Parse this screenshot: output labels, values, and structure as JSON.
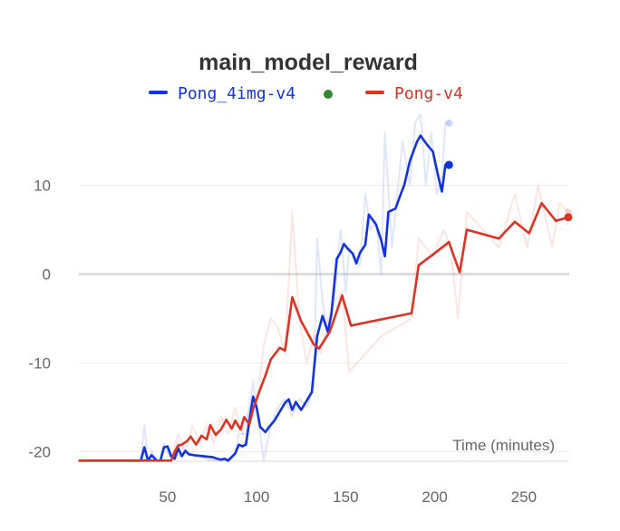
{
  "chart_data": {
    "type": "line",
    "title": "main_model_reward",
    "xlabel": "Time (minutes)",
    "ylabel": "",
    "xlim": [
      0,
      278
    ],
    "ylim": [
      -21,
      20
    ],
    "xticks": [
      50,
      100,
      150,
      200,
      250
    ],
    "yticks": [
      -20,
      -10,
      0,
      10
    ],
    "grid": true,
    "legend_position": "top",
    "series": [
      {
        "name": "Pong_4img-v4",
        "color": "#1133dd",
        "smoothed": [
          [
            0,
            -21
          ],
          [
            35,
            -21
          ],
          [
            37,
            -19.5
          ],
          [
            39,
            -21
          ],
          [
            41,
            -20.4
          ],
          [
            44,
            -21
          ],
          [
            46,
            -21
          ],
          [
            48,
            -19.5
          ],
          [
            50,
            -19.4
          ],
          [
            52,
            -20.5
          ],
          [
            54,
            -20.8
          ],
          [
            56,
            -19.6
          ],
          [
            58,
            -20.5
          ],
          [
            60,
            -19.9
          ],
          [
            62,
            -20.3
          ],
          [
            65,
            -20.4
          ],
          [
            75,
            -20.6
          ],
          [
            78,
            -20.8
          ],
          [
            80,
            -20.9
          ],
          [
            82,
            -20.8
          ],
          [
            84,
            -21
          ],
          [
            86,
            -20.6
          ],
          [
            88,
            -20.2
          ],
          [
            90,
            -19.2
          ],
          [
            92,
            -19.4
          ],
          [
            94,
            -19.2
          ],
          [
            96,
            -16.5
          ],
          [
            98,
            -13.8
          ],
          [
            100,
            -15
          ],
          [
            102,
            -17.2
          ],
          [
            105,
            -17.8
          ],
          [
            107,
            -17.2
          ],
          [
            110,
            -16.5
          ],
          [
            113,
            -15.5
          ],
          [
            116,
            -14.5
          ],
          [
            118,
            -14.1
          ],
          [
            120,
            -15.3
          ],
          [
            122,
            -14.4
          ],
          [
            125,
            -15.3
          ],
          [
            128,
            -14.3
          ],
          [
            131,
            -13.3
          ],
          [
            134,
            -7
          ],
          [
            137,
            -4.7
          ],
          [
            140,
            -6.5
          ],
          [
            142,
            -4.5
          ],
          [
            145,
            1.7
          ],
          [
            147,
            2.4
          ],
          [
            149,
            3.4
          ],
          [
            151,
            2.9
          ],
          [
            154,
            2.3
          ],
          [
            156,
            1.2
          ],
          [
            158,
            2.4
          ],
          [
            161,
            3.3
          ],
          [
            163,
            6.7
          ],
          [
            167,
            5.6
          ],
          [
            170,
            3.8
          ],
          [
            172,
            2
          ],
          [
            174,
            7
          ],
          [
            178,
            7.4
          ],
          [
            180,
            8.5
          ],
          [
            183,
            10.1
          ],
          [
            186,
            12.7
          ],
          [
            190,
            14.9
          ],
          [
            192,
            15.6
          ],
          [
            196,
            14.5
          ],
          [
            199,
            13.8
          ],
          [
            202,
            11
          ],
          [
            204,
            9.3
          ],
          [
            206,
            12.3
          ],
          [
            208,
            12.3
          ]
        ],
        "raw": [
          [
            0,
            -21
          ],
          [
            35,
            -21
          ],
          [
            37,
            -17
          ],
          [
            39,
            -21
          ],
          [
            41,
            -20
          ],
          [
            44,
            -21
          ],
          [
            46,
            -21
          ],
          [
            48,
            -19
          ],
          [
            52,
            -21
          ],
          [
            56,
            -19
          ],
          [
            60,
            -20
          ],
          [
            75,
            -21
          ],
          [
            84,
            -21
          ],
          [
            88,
            -20
          ],
          [
            90,
            -18
          ],
          [
            94,
            -18
          ],
          [
            98,
            -12
          ],
          [
            100,
            -15
          ],
          [
            104,
            -21
          ],
          [
            108,
            -17
          ],
          [
            112,
            -15
          ],
          [
            116,
            -14
          ],
          [
            120,
            -16
          ],
          [
            124,
            -14
          ],
          [
            128,
            -15
          ],
          [
            132,
            -13
          ],
          [
            134,
            4
          ],
          [
            137,
            -3
          ],
          [
            140,
            -7
          ],
          [
            144,
            -2
          ],
          [
            147,
            5
          ],
          [
            150,
            -2
          ],
          [
            152,
            3
          ],
          [
            155,
            2
          ],
          [
            158,
            1
          ],
          [
            161,
            9
          ],
          [
            164,
            5
          ],
          [
            167,
            6
          ],
          [
            170,
            0
          ],
          [
            172,
            16
          ],
          [
            176,
            3
          ],
          [
            179,
            9
          ],
          [
            182,
            15
          ],
          [
            186,
            10
          ],
          [
            189,
            17
          ],
          [
            192,
            18
          ],
          [
            195,
            10
          ],
          [
            198,
            16
          ],
          [
            201,
            9
          ],
          [
            204,
            11
          ],
          [
            206,
            17
          ],
          [
            208,
            17
          ]
        ]
      },
      {
        "name": "Pong-v4",
        "color": "#dd3322",
        "smoothed": [
          [
            0,
            -21
          ],
          [
            52,
            -21
          ],
          [
            54,
            -20
          ],
          [
            56,
            -19.3
          ],
          [
            58,
            -19.2
          ],
          [
            61,
            -18.8
          ],
          [
            63,
            -18.3
          ],
          [
            66,
            -19.2
          ],
          [
            69,
            -18.2
          ],
          [
            72,
            -18.6
          ],
          [
            74,
            -17
          ],
          [
            77,
            -18.1
          ],
          [
            80,
            -17.5
          ],
          [
            83,
            -16.4
          ],
          [
            86,
            -17.4
          ],
          [
            88,
            -16.5
          ],
          [
            91,
            -17.5
          ],
          [
            93,
            -16.1
          ],
          [
            96,
            -16.9
          ],
          [
            98,
            -15.2
          ],
          [
            101,
            -13.5
          ],
          [
            105,
            -11.4
          ],
          [
            108,
            -9.6
          ],
          [
            113,
            -8.3
          ],
          [
            116,
            -8.6
          ],
          [
            120,
            -2.6
          ],
          [
            125,
            -5.3
          ],
          [
            132,
            -7.9
          ],
          [
            135,
            -8.4
          ],
          [
            141,
            -6.5
          ],
          [
            145,
            -4.2
          ],
          [
            148,
            -2.4
          ],
          [
            153,
            -5.8
          ],
          [
            187,
            -4.4
          ],
          [
            191,
            1
          ],
          [
            199,
            2.2
          ],
          [
            208,
            3.6
          ],
          [
            214,
            0.2
          ],
          [
            218,
            5
          ],
          [
            236,
            4
          ],
          [
            245,
            5.9
          ],
          [
            253,
            4.6
          ],
          [
            260,
            8
          ],
          [
            268,
            6
          ],
          [
            275,
            6.4
          ]
        ],
        "raw": [
          [
            0,
            -21
          ],
          [
            52,
            -21
          ],
          [
            56,
            -18
          ],
          [
            60,
            -20
          ],
          [
            64,
            -17
          ],
          [
            68,
            -19
          ],
          [
            72,
            -17
          ],
          [
            76,
            -19
          ],
          [
            80,
            -16
          ],
          [
            84,
            -18
          ],
          [
            88,
            -15
          ],
          [
            92,
            -18
          ],
          [
            96,
            -15
          ],
          [
            100,
            -15
          ],
          [
            104,
            -8
          ],
          [
            108,
            -5
          ],
          [
            112,
            -6
          ],
          [
            116,
            -9
          ],
          [
            120,
            7
          ],
          [
            124,
            -5
          ],
          [
            128,
            -10
          ],
          [
            132,
            -7
          ],
          [
            136,
            -9
          ],
          [
            140,
            -5
          ],
          [
            144,
            -3
          ],
          [
            148,
            -2
          ],
          [
            152,
            -11
          ],
          [
            170,
            -7
          ],
          [
            187,
            -5
          ],
          [
            191,
            4
          ],
          [
            199,
            2
          ],
          [
            205,
            5
          ],
          [
            209,
            3
          ],
          [
            213,
            -5
          ],
          [
            218,
            7
          ],
          [
            236,
            3
          ],
          [
            245,
            9
          ],
          [
            252,
            3
          ],
          [
            258,
            10
          ],
          [
            266,
            3
          ],
          [
            270,
            8
          ],
          [
            275,
            7
          ]
        ]
      }
    ]
  },
  "legend": {
    "items": [
      {
        "label": "Pong_4img-v4",
        "color": "#1133dd",
        "dot_color": "#338833"
      },
      {
        "label": "Pong-v4",
        "color": "#dd3322"
      }
    ]
  }
}
